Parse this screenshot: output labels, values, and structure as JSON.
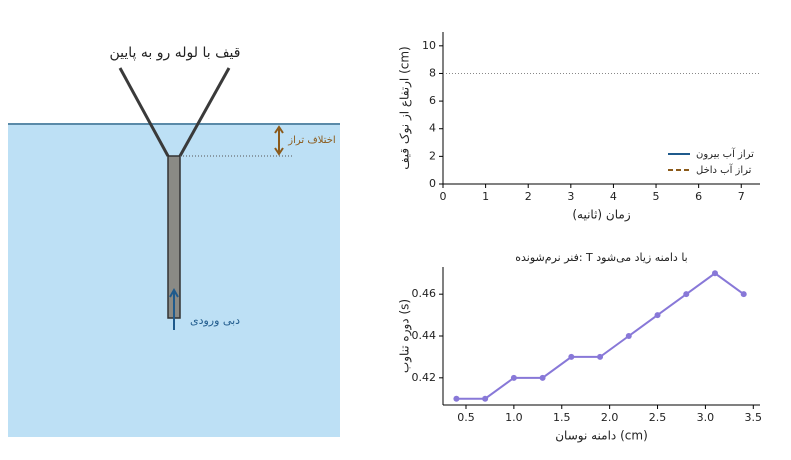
{
  "diagram": {
    "title": "قیف با لوله رو به پایین",
    "level_difference_label": "اختلاف تراز",
    "inflow_label": "دبی ورودی"
  },
  "chart_data": [
    {
      "type": "line",
      "xlabel": "زمان (ثانیه)",
      "ylabel": "ارتفاع از نوک قیف (cm)",
      "x": [],
      "series": [
        {
          "name": "تراز آب بیرون",
          "color": "#1f5a8c",
          "values": []
        },
        {
          "name": "تراز آب داخل",
          "color": "#8b5a1a",
          "values": [],
          "dashed": true
        }
      ],
      "xlim": [
        0,
        7.44
      ],
      "ylim": [
        0,
        11
      ],
      "xticks": [
        0,
        1,
        2,
        3,
        4,
        5,
        6,
        7
      ],
      "yticks": [
        0,
        2,
        4,
        6,
        8,
        10
      ],
      "reference_line": 8,
      "legend": "lower right"
    },
    {
      "type": "line",
      "title": "فنر نرم‌شونده: T با دامنه زیاد می‌شود",
      "xlabel": "دامنه نوسان (cm)",
      "ylabel": "دوره تناوب (s)",
      "x": [
        0.4,
        0.7,
        1.0,
        1.3,
        1.6,
        1.9,
        2.2,
        2.5,
        2.8,
        3.1,
        3.4
      ],
      "series": [
        {
          "color": "#8878d8",
          "values": [
            0.41,
            0.41,
            0.42,
            0.42,
            0.43,
            0.43,
            0.44,
            0.45,
            0.46,
            0.47,
            0.46
          ],
          "markers": true
        }
      ],
      "xlim": [
        0.26,
        3.57
      ],
      "ylim": [
        0.407,
        0.473
      ],
      "xticks": [
        0.5,
        {
          "value": 1,
          "label": "1.0"
        },
        1.5,
        {
          "value": 2,
          "label": "2.0"
        },
        2.5,
        {
          "value": 3,
          "label": "3.0"
        },
        3.5
      ],
      "yticks": [
        0.42,
        0.44,
        0.46
      ]
    }
  ]
}
